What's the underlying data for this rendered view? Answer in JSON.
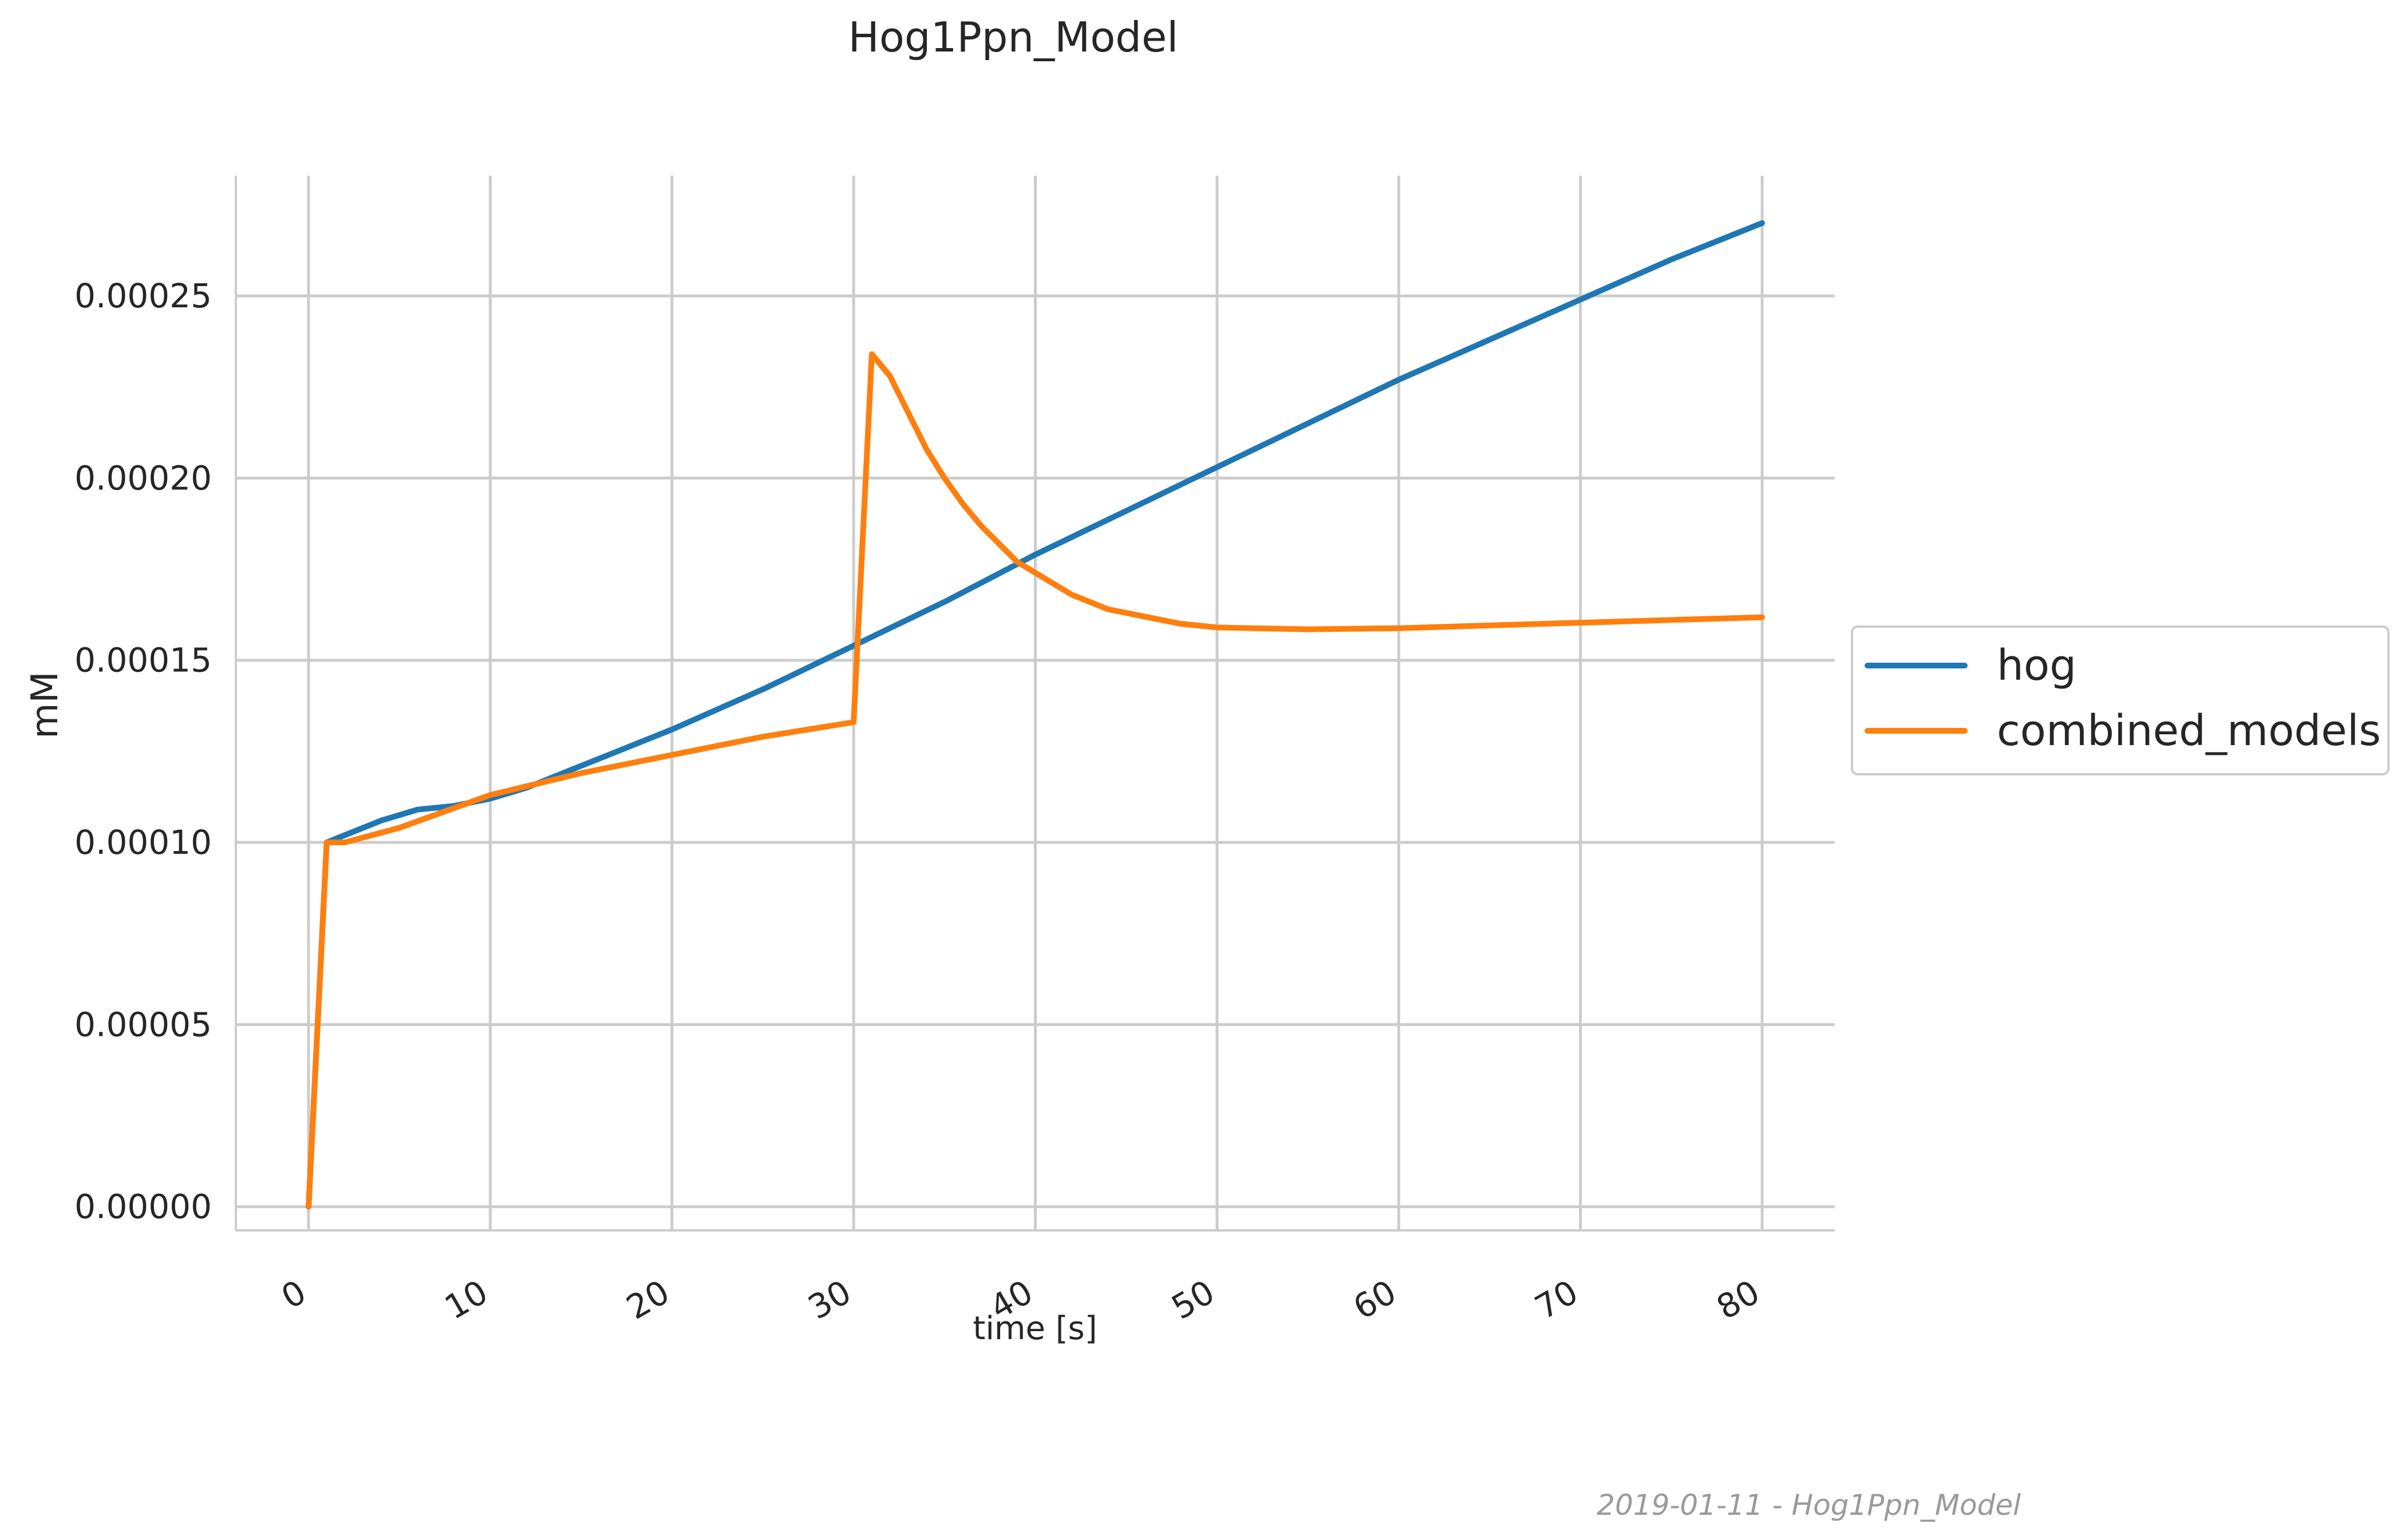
{
  "chart_data": {
    "type": "line",
    "title": "Hog1Ppn_Model",
    "xlabel": "time [s]",
    "ylabel": "mM",
    "xlim": [
      -4,
      84
    ],
    "ylim": [
      -6.5e-06,
      0.000283
    ],
    "xticks": [
      0,
      10,
      20,
      30,
      40,
      50,
      60,
      70,
      80
    ],
    "xtick_labels": [
      "0",
      "10",
      "20",
      "30",
      "40",
      "50",
      "60",
      "70",
      "80"
    ],
    "yticks": [
      0,
      5e-05,
      0.0001,
      0.00015,
      0.0002,
      0.00025
    ],
    "ytick_labels": [
      "0.00000",
      "0.00005",
      "0.00010",
      "0.00015",
      "0.00020",
      "0.00025"
    ],
    "grid": true,
    "legend_position": "center-right outside",
    "series": [
      {
        "name": "hog",
        "color": "#1f77b4",
        "x": [
          0,
          1,
          2,
          4,
          6,
          8,
          10,
          12,
          14,
          16,
          18,
          20,
          25,
          30,
          35,
          40,
          45,
          50,
          55,
          60,
          65,
          70,
          75,
          80
        ],
        "y": [
          0,
          0.0001,
          0.000102,
          0.000106,
          0.000109,
          0.00011,
          0.000112,
          0.000115,
          0.000119,
          0.000123,
          0.000127,
          0.000131,
          0.000142,
          0.000154,
          0.000166,
          0.000179,
          0.000191,
          0.000203,
          0.000215,
          0.000227,
          0.000238,
          0.000249,
          0.00026,
          0.00027
        ]
      },
      {
        "name": "combined_models",
        "color": "#ff7f0e",
        "x": [
          0,
          1,
          2,
          5,
          10,
          15,
          20,
          25,
          30,
          31,
          32,
          33,
          34,
          35,
          36,
          37,
          38,
          39,
          40,
          42,
          44,
          46,
          48,
          50,
          55,
          60,
          70,
          80
        ],
        "y": [
          0,
          0.0001,
          0.0001,
          0.000104,
          0.000113,
          0.000119,
          0.000124,
          0.000129,
          0.000133,
          0.000234,
          0.000228,
          0.000218,
          0.000208,
          0.0002,
          0.000193,
          0.000187,
          0.000182,
          0.000177,
          0.000174,
          0.000168,
          0.000164,
          0.000162,
          0.00016,
          0.000159,
          0.0001585,
          0.0001588,
          0.0001603,
          0.0001618
        ]
      }
    ]
  },
  "footer": "2019-01-11 - Hog1Ppn_Model"
}
